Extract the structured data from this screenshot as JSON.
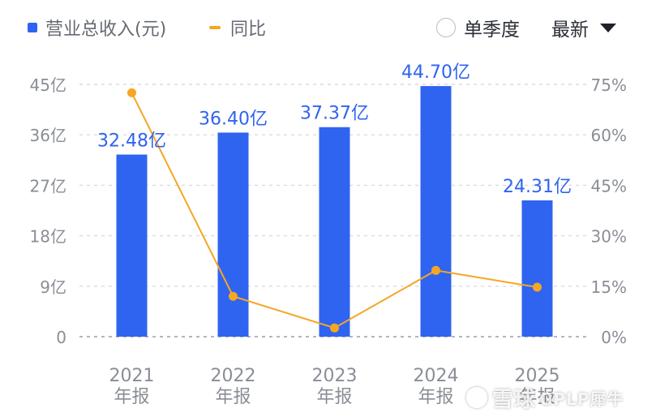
{
  "legend": {
    "bar_label": "营业总收入(元)",
    "line_label": "同比"
  },
  "controls": {
    "quarter_label": "单季度",
    "sort_label": "最新"
  },
  "colors": {
    "bar": "#2f64f0",
    "line": "#f5a623",
    "axis_text": "#8a8e96",
    "grid": "#d9dbe0",
    "label_text": "#2f64f0"
  },
  "chart_data": {
    "type": "bar",
    "categories": [
      "2021\n年报",
      "2022\n年报",
      "2023\n年报",
      "2024\n年报",
      "2025\n年报"
    ],
    "series": [
      {
        "name": "营业总收入(元)",
        "type": "bar",
        "axis": "left",
        "values": [
          32.48,
          36.4,
          37.37,
          44.7,
          24.31
        ],
        "value_labels": [
          "32.48亿",
          "36.40亿",
          "37.37亿",
          "44.70亿",
          "24.31亿"
        ]
      },
      {
        "name": "同比",
        "type": "line",
        "axis": "right",
        "values": [
          72.5,
          12,
          2.6,
          19.7,
          14.7
        ]
      }
    ],
    "y_left": {
      "ticks": [
        0,
        9,
        18,
        27,
        36,
        45
      ],
      "tick_labels": [
        "0",
        "9亿",
        "18亿",
        "27亿",
        "36亿",
        "45亿"
      ],
      "range": [
        0,
        45
      ]
    },
    "y_right": {
      "ticks": [
        0,
        15,
        30,
        45,
        60,
        75
      ],
      "tick_labels": [
        "0%",
        "15%",
        "30%",
        "45%",
        "60%",
        "75%"
      ],
      "range": [
        0,
        75
      ]
    },
    "grid": true,
    "legend_position": "top-left"
  },
  "watermark": {
    "site": "雪球",
    "user": "GPLP犀牛"
  }
}
